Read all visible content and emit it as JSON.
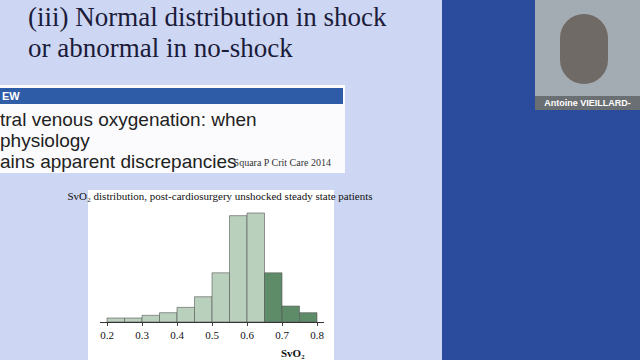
{
  "slide": {
    "title": [
      "(iii) Normal distribution in shock",
      "or abnormal in no-shock"
    ],
    "review": {
      "header": "EW",
      "title": [
        "tral venous oxygenation: when physiology",
        "ains apparent discrepancies"
      ],
      "citation": "Squara P Crit Care 2014"
    },
    "speaker": "Antoine VIEILLARD-"
  },
  "chart_data": {
    "type": "histogram",
    "title": "SvO₂ distribution, post-cardiosurgery unshocked steady state patients",
    "x_label": "SvO₂",
    "bins": [
      0.2,
      0.25,
      0.3,
      0.35,
      0.4,
      0.45,
      0.5,
      0.55,
      0.6,
      0.65,
      0.7,
      0.75,
      0.8
    ],
    "values": [
      3,
      3,
      5,
      7,
      11,
      19,
      37,
      80,
      82,
      37,
      12,
      7
    ],
    "colors": [
      "#b8d0bc",
      "#b8d0bc",
      "#b8d0bc",
      "#b8d0bc",
      "#b8d0bc",
      "#b8d0bc",
      "#b8d0bc",
      "#b8d0bc",
      "#b8d0bc",
      "#5f8c68",
      "#5f8c68",
      "#5f8c68"
    ],
    "xlim": [
      0.18,
      0.82
    ],
    "xticks": [
      0.2,
      0.3,
      0.4,
      0.5,
      0.6,
      0.7,
      0.8
    ],
    "ylim": [
      0,
      85
    ],
    "tick_labels": "x",
    "grid": false
  }
}
